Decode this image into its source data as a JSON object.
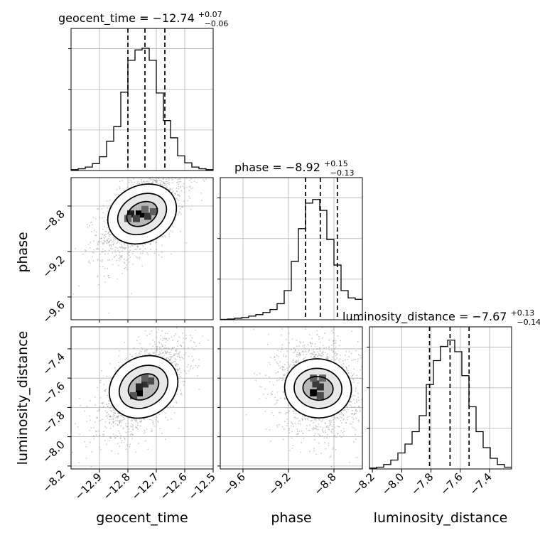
{
  "chart_data": {
    "type": "corner",
    "parameters": [
      "geocent_time",
      "phase",
      "luminosity_distance"
    ],
    "axis_labels": {
      "geocent_time": "geocent_time",
      "phase": "phase",
      "luminosity_distance": "luminosity_distance"
    },
    "ranges": {
      "geocent_time": [
        -13.0,
        -12.5
      ],
      "phase": [
        -9.8,
        -8.55
      ],
      "luminosity_distance": [
        -8.22,
        -7.25
      ]
    },
    "ticks": {
      "geocent_time": [
        -12.9,
        -12.8,
        -12.7,
        -12.6,
        -12.5
      ],
      "phase": [
        -9.6,
        -9.2,
        -8.8
      ],
      "luminosity_distance": [
        -8.2,
        -8.0,
        -7.8,
        -7.6,
        -7.4
      ]
    },
    "tick_labels": {
      "geocent_time": [
        "−12.9",
        "−12.8",
        "−12.7",
        "−12.6",
        "−12.5"
      ],
      "phase": [
        "−9.6",
        "−9.2",
        "−8.8"
      ],
      "luminosity_distance": [
        "−8.2",
        "−8.0",
        "−7.8",
        "−7.6",
        "−7.4"
      ]
    },
    "titles": [
      {
        "param": "geocent_time",
        "text": "geocent_time = −12.74",
        "plus": "+0.07",
        "minus": "−0.06"
      },
      {
        "param": "phase",
        "text": "phase = −8.92",
        "plus": "+0.15",
        "minus": "−0.13"
      },
      {
        "param": "luminosity_distance",
        "text": "luminosity_distance = −7.67",
        "plus": "+0.13",
        "minus": "−0.14"
      }
    ],
    "quantiles": {
      "geocent_time": [
        -12.8,
        -12.74,
        -12.67
      ],
      "phase": [
        -9.05,
        -8.92,
        -8.77
      ],
      "luminosity_distance": [
        -7.81,
        -7.67,
        -7.54
      ]
    },
    "histograms": {
      "geocent_time": {
        "edges": [
          -13.0,
          -12.975,
          -12.95,
          -12.925,
          -12.9,
          -12.875,
          -12.85,
          -12.825,
          -12.8,
          -12.775,
          -12.75,
          -12.725,
          -12.7,
          -12.675,
          -12.65,
          -12.625,
          -12.6,
          -12.575,
          -12.55,
          -12.525,
          -12.5
        ],
        "counts": [
          1,
          2,
          4,
          8,
          16,
          34,
          51,
          91,
          128,
          140,
          142,
          128,
          90,
          58,
          38,
          17,
          9,
          4,
          2,
          1
        ],
        "ylim": [
          0,
          165
        ]
      },
      "phase": {
        "edges": [
          -9.8,
          -9.7375,
          -9.675,
          -9.6125,
          -9.55,
          -9.4875,
          -9.425,
          -9.3625,
          -9.3,
          -9.2375,
          -9.175,
          -9.1125,
          -9.05,
          -8.9875,
          -8.925,
          -8.8625,
          -8.8,
          -8.7375,
          -8.675,
          -8.6125,
          -8.55
        ],
        "counts": [
          0.5,
          1,
          2,
          3,
          5,
          7,
          10,
          14,
          22,
          40,
          80,
          125,
          160,
          165,
          150,
          110,
          75,
          40,
          30,
          28
        ],
        "ylim": [
          0,
          195
        ]
      },
      "luminosity_distance": {
        "edges": [
          -8.22,
          -8.1715,
          -8.123,
          -8.0745,
          -8.026,
          -7.9775,
          -7.929,
          -7.8805,
          -7.832,
          -7.7835,
          -7.735,
          -7.6865,
          -7.638,
          -7.5895,
          -7.541,
          -7.4925,
          -7.444,
          -7.3955,
          -7.347,
          -7.2985,
          -7.25
        ],
        "counts": [
          1,
          2,
          5,
          10,
          18,
          28,
          42,
          60,
          95,
          122,
          138,
          145,
          132,
          105,
          70,
          42,
          24,
          12,
          5,
          2
        ],
        "ylim": [
          0,
          160
        ]
      }
    },
    "density_2d": [
      {
        "x": "geocent_time",
        "y": "phase",
        "center": [
          -12.75,
          -8.87
        ],
        "sigma": [
          0.06,
          0.16
        ],
        "rho": 0.55,
        "dense_cells": [
          [
            -12.76,
            -8.87,
            1.0
          ],
          [
            -12.74,
            -8.87,
            1.0
          ],
          [
            -12.79,
            -8.87,
            0.85
          ],
          [
            -12.73,
            -8.89,
            0.7
          ],
          [
            -12.77,
            -8.91,
            0.65
          ],
          [
            -12.71,
            -8.85,
            0.5
          ],
          [
            -12.8,
            -8.91,
            0.45
          ],
          [
            -12.74,
            -8.83,
            0.45
          ]
        ]
      },
      {
        "x": "geocent_time",
        "y": "luminosity_distance",
        "center": [
          -12.745,
          -7.66
        ],
        "sigma": [
          0.06,
          0.13
        ],
        "rho": 0.6,
        "dense_cells": [
          [
            -12.76,
            -7.7,
            1.0
          ],
          [
            -12.74,
            -7.64,
            0.75
          ],
          [
            -12.76,
            -7.66,
            0.8
          ],
          [
            -12.72,
            -7.62,
            0.6
          ],
          [
            -12.78,
            -7.72,
            0.55
          ],
          [
            -12.74,
            -7.6,
            0.5
          ]
        ]
      },
      {
        "x": "phase",
        "y": "luminosity_distance",
        "center": [
          -8.94,
          -7.67
        ],
        "sigma": [
          0.14,
          0.13
        ],
        "rho": -0.1,
        "dense_cells": [
          [
            -8.98,
            -7.7,
            1.0
          ],
          [
            -8.92,
            -7.66,
            0.75
          ],
          [
            -8.96,
            -7.64,
            0.7
          ],
          [
            -8.92,
            -7.72,
            0.6
          ],
          [
            -8.98,
            -7.6,
            0.5
          ],
          [
            -8.9,
            -7.6,
            0.45
          ]
        ]
      }
    ],
    "grid": true,
    "legend": null
  }
}
